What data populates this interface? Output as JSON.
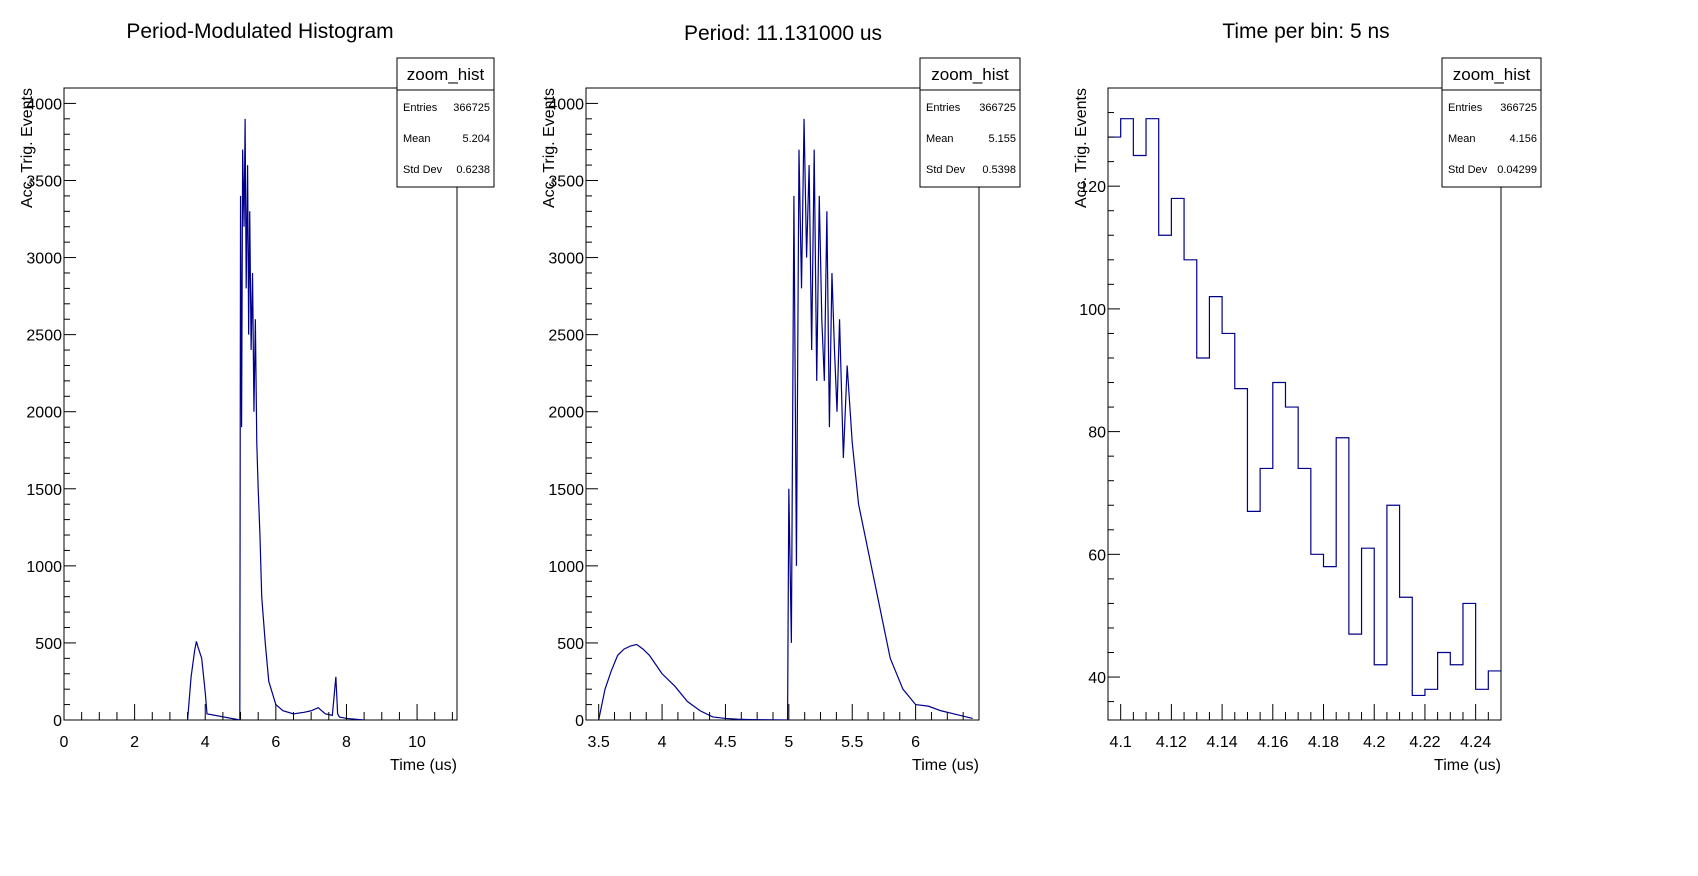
{
  "chart_data": [
    {
      "type": "histogram",
      "title": "Period-Modulated Histogram",
      "xlabel": "Time (us)",
      "ylabel": "Acc. Trig. Events",
      "xlim": [
        0,
        11.131
      ],
      "ylim": [
        0,
        4100
      ],
      "x_ticks": [
        0,
        2,
        4,
        6,
        8,
        10
      ],
      "y_ticks": [
        0,
        500,
        1000,
        1500,
        2000,
        2500,
        3000,
        3500,
        4000
      ],
      "x_tick_labels": [
        "0",
        "2",
        "4",
        "6",
        "8",
        "10"
      ],
      "y_tick_labels": [
        "0",
        "500",
        "1000",
        "1500",
        "2000",
        "2500",
        "3000",
        "3500",
        "4000"
      ],
      "line_color": "#00008b",
      "stats": {
        "name": "zoom_hist",
        "rows": [
          {
            "label": "Entries",
            "value": "366725"
          },
          {
            "label": "Mean",
            "value": "5.204"
          },
          {
            "label": "Std Dev",
            "value": "0.6238"
          }
        ]
      },
      "series": [
        {
          "x": [
            3.5,
            3.6,
            3.7,
            3.75,
            3.8,
            3.9,
            4.0,
            4.05,
            4.98,
            5.0,
            5.03,
            5.06,
            5.1,
            5.13,
            5.16,
            5.2,
            5.23,
            5.26,
            5.3,
            5.34,
            5.38,
            5.42,
            5.46,
            5.5,
            5.55,
            5.6,
            5.7,
            5.8,
            6.0,
            6.2,
            6.5,
            6.8,
            7.0,
            7.2,
            7.4,
            7.6,
            7.7,
            7.75,
            7.8,
            8.0,
            8.5
          ],
          "values": [
            0,
            280,
            450,
            510,
            470,
            400,
            180,
            40,
            0,
            3400,
            1900,
            3700,
            3200,
            3900,
            2800,
            3600,
            2500,
            3300,
            2400,
            2900,
            2000,
            2600,
            1800,
            1500,
            1200,
            800,
            500,
            250,
            100,
            60,
            40,
            50,
            60,
            80,
            40,
            30,
            280,
            40,
            20,
            10,
            0
          ]
        }
      ]
    },
    {
      "type": "histogram",
      "title": "Period: 11.131000 us",
      "xlabel": "Time (us)",
      "ylabel": "Acc. Trig. Events",
      "xlim": [
        3.4,
        6.5
      ],
      "ylim": [
        0,
        4100
      ],
      "x_ticks": [
        3.5,
        4,
        4.5,
        5,
        5.5,
        6
      ],
      "y_ticks": [
        0,
        500,
        1000,
        1500,
        2000,
        2500,
        3000,
        3500,
        4000
      ],
      "x_tick_labels": [
        "3.5",
        "4",
        "4.5",
        "5",
        "5.5",
        "6"
      ],
      "y_tick_labels": [
        "0",
        "500",
        "1000",
        "1500",
        "2000",
        "2500",
        "3000",
        "3500",
        "4000"
      ],
      "line_color": "#00008b",
      "stats": {
        "name": "zoom_hist",
        "rows": [
          {
            "label": "Entries",
            "value": "366725"
          },
          {
            "label": "Mean",
            "value": "5.155"
          },
          {
            "label": "Std Dev",
            "value": "0.5398"
          }
        ]
      },
      "series": [
        {
          "x": [
            3.5,
            3.55,
            3.6,
            3.65,
            3.7,
            3.75,
            3.8,
            3.85,
            3.9,
            3.95,
            4.0,
            4.1,
            4.2,
            4.3,
            4.4,
            4.5,
            4.6,
            4.7,
            4.8,
            4.99,
            5.0,
            5.02,
            5.04,
            5.06,
            5.08,
            5.1,
            5.12,
            5.14,
            5.16,
            5.18,
            5.2,
            5.22,
            5.24,
            5.26,
            5.28,
            5.3,
            5.32,
            5.34,
            5.36,
            5.38,
            5.4,
            5.43,
            5.46,
            5.5,
            5.55,
            5.6,
            5.65,
            5.7,
            5.75,
            5.8,
            5.9,
            6.0,
            6.1,
            6.2,
            6.3,
            6.45
          ],
          "values": [
            0,
            200,
            320,
            420,
            460,
            480,
            490,
            460,
            420,
            360,
            300,
            220,
            120,
            60,
            20,
            10,
            5,
            3,
            2,
            0,
            1500,
            500,
            3400,
            1000,
            3700,
            2800,
            3900,
            3000,
            3600,
            2400,
            3700,
            2200,
            3400,
            2600,
            2200,
            3300,
            1900,
            2900,
            2400,
            2000,
            2600,
            1700,
            2300,
            1800,
            1400,
            1200,
            1000,
            800,
            600,
            400,
            200,
            100,
            90,
            60,
            40,
            10
          ]
        }
      ]
    },
    {
      "type": "histogram",
      "title": "Time per bin: 5 ns",
      "xlabel": "Time (us)",
      "ylabel": "Acc. Trig. Events",
      "xlim": [
        4.095,
        4.25
      ],
      "ylim": [
        33,
        136
      ],
      "x_ticks": [
        4.1,
        4.12,
        4.14,
        4.16,
        4.18,
        4.2,
        4.22,
        4.24
      ],
      "y_ticks": [
        40,
        60,
        80,
        100,
        120
      ],
      "x_tick_labels": [
        "4.1",
        "4.12",
        "4.14",
        "4.16",
        "4.18",
        "4.2",
        "4.22",
        "4.24"
      ],
      "y_tick_labels": [
        "40",
        "60",
        "80",
        "100",
        "120"
      ],
      "line_color": "#00008b",
      "stats": {
        "name": "zoom_hist",
        "rows": [
          {
            "label": "Entries",
            "value": "366725"
          },
          {
            "label": "Mean",
            "value": "4.156"
          },
          {
            "label": "Std Dev",
            "value": "0.04299"
          }
        ]
      },
      "series": [
        {
          "bin_width": 0.005,
          "bin_edges_start": 4.095,
          "values": [
            128,
            131,
            125,
            131,
            112,
            118,
            108,
            92,
            102,
            96,
            87,
            67,
            74,
            88,
            84,
            74,
            60,
            58,
            79,
            47,
            61,
            42,
            68,
            53,
            37,
            38,
            44,
            42,
            52,
            38,
            41
          ]
        }
      ]
    }
  ]
}
